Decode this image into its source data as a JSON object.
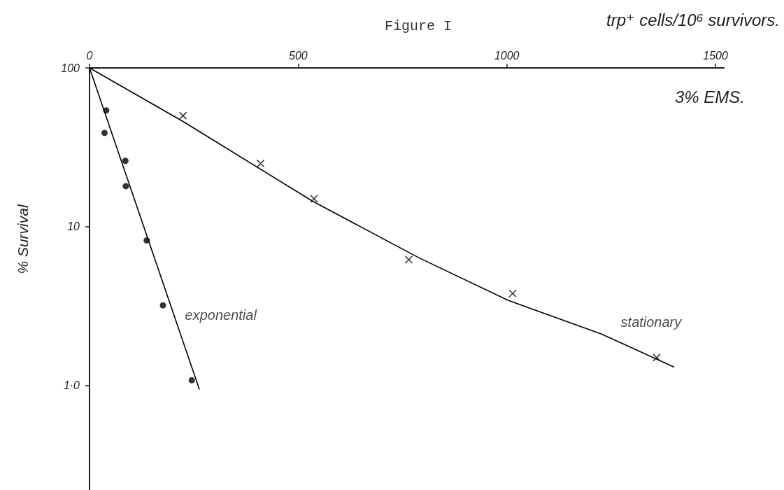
{
  "chart_data": {
    "type": "scatter",
    "title": "Figure I",
    "xlabel": "trp⁺ cells/10⁶ survivors.",
    "ylabel": "% Survival",
    "annotations": [
      "3% EMS."
    ],
    "xlim": [
      0,
      1520
    ],
    "xticks": [
      0,
      500,
      1000,
      1500
    ],
    "ylim": [
      0.22,
      100
    ],
    "yticks": [
      100,
      10,
      {
        "value": 1,
        "label": "1·0"
      }
    ],
    "log": "y",
    "grid": false,
    "legend": false,
    "series": [
      {
        "name": "exponential",
        "type": "scatter",
        "marker": "circle",
        "color": "#000000",
        "x": [
          40,
          36,
          86,
          87,
          137,
          176,
          245
        ],
        "values": [
          54,
          39,
          26,
          18,
          8.2,
          3.2,
          1.08
        ]
      },
      {
        "type": "line",
        "marker": "none",
        "line_style": "solid",
        "color": "#000000",
        "x": [
          0,
          263
        ],
        "values": [
          100,
          0.95
        ]
      },
      {
        "name": "stationary",
        "type": "scatter",
        "marker": "cross",
        "color": "#000000",
        "x": [
          224,
          410,
          538,
          765,
          1014,
          1359
        ],
        "values": [
          50,
          25,
          15,
          6.2,
          3.8,
          1.5
        ]
      },
      {
        "type": "line",
        "marker": "none",
        "line_style": "solid",
        "color": "#000000",
        "x": [
          0,
          224,
          534,
          788,
          1003,
          1227,
          1400
        ],
        "values": [
          100,
          46,
          14.5,
          6.4,
          3.44,
          2.11,
          1.31
        ]
      }
    ]
  }
}
